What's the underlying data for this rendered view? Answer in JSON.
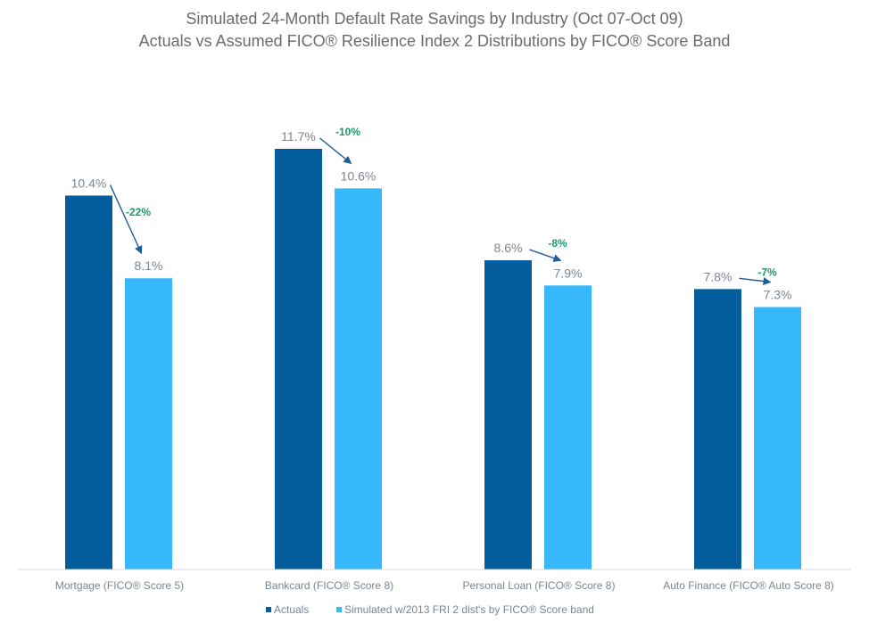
{
  "chart_data": {
    "type": "bar",
    "title": "Simulated 24-Month Default Rate Savings by Industry (Oct 07-Oct 09)",
    "subtitle": "Actuals vs Assumed FICO® Resilience Index 2 Distributions by FICO® Score Band",
    "categories": [
      "Mortgage (FICO® Score 5)",
      "Bankcard (FICO® Score 8)",
      "Personal Loan (FICO® Score 8)",
      "Auto Finance (FICO® Auto Score 8)"
    ],
    "series": [
      {
        "name": "Actuals",
        "color": "#045e9d",
        "values": [
          10.4,
          11.7,
          8.6,
          7.8
        ],
        "labels": [
          "10.4%",
          "11.7%",
          "8.6%",
          "7.8%"
        ]
      },
      {
        "name": "Simulated w/2013 FRI 2 dist's by FICO® Score band",
        "color": "#38b8fc",
        "values": [
          8.1,
          10.6,
          7.9,
          7.3
        ],
        "labels": [
          "8.1%",
          "10.6%",
          "7.9%",
          "7.3%"
        ]
      }
    ],
    "changes": [
      "-22%",
      "-10%",
      "-8%",
      "-7%"
    ],
    "ylim": [
      0,
      11.7
    ],
    "grid": false,
    "legend": "bottom"
  }
}
